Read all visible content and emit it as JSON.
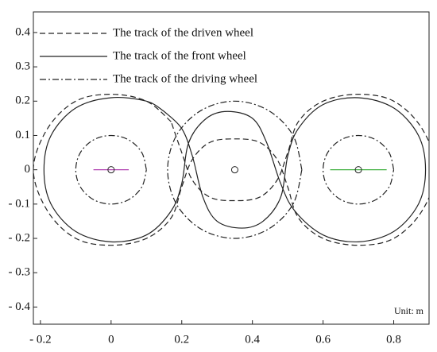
{
  "chart_data": {
    "type": "line",
    "annotation": "Unit: m",
    "xlim": [
      -0.22,
      0.9
    ],
    "ylim": [
      -0.45,
      0.46
    ],
    "xticks": [
      {
        "value": -0.2,
        "label": "- 0.2"
      },
      0,
      0.2,
      0.4,
      0.6,
      0.8
    ],
    "yticks": [
      {
        "value": -0.4,
        "label": "- 0.4"
      },
      {
        "value": -0.3,
        "label": "- 0.3"
      },
      {
        "value": -0.2,
        "label": "- 0.2"
      },
      {
        "value": -0.1,
        "label": "- 0.1"
      },
      0,
      0.1,
      0.2,
      0.3,
      0.4
    ],
    "legend": "upper left",
    "series": [
      {
        "name": "The track of the driven wheel",
        "color": "#222222",
        "style": "dashed",
        "x": [
          0.17,
          0.1,
          0,
          -0.1,
          -0.18,
          -0.22,
          -0.18,
          -0.1,
          0,
          0.1,
          0.17,
          0.2,
          0.23,
          0.28,
          0.35,
          0.42,
          0.47,
          0.5,
          0.53,
          0.6,
          0.7,
          0.8,
          0.88,
          0.92,
          0.88,
          0.8,
          0.7,
          0.6,
          0.53,
          0.5,
          0.47,
          0.42,
          0.35,
          0.28,
          0.23,
          0.2,
          0.17
        ],
        "y": [
          0.14,
          0.2,
          0.22,
          0.2,
          0.12,
          0,
          -0.12,
          -0.2,
          -0.22,
          -0.2,
          -0.14,
          -0.05,
          0.03,
          0.08,
          0.09,
          0.08,
          0.03,
          -0.05,
          -0.14,
          -0.2,
          -0.22,
          -0.2,
          -0.12,
          0,
          0.12,
          0.2,
          0.22,
          0.2,
          0.14,
          0.05,
          -0.03,
          -0.08,
          -0.09,
          -0.08,
          -0.03,
          0.05,
          0.14
        ]
      },
      {
        "name": "The track of the front wheel",
        "color": "#222222",
        "style": "solid",
        "x": [
          0.15,
          0.1,
          0,
          -0.1,
          -0.17,
          -0.19,
          -0.17,
          -0.1,
          0,
          0.1,
          0.17,
          0.2,
          0.22,
          0.27,
          0.33,
          0.4,
          0.44,
          0.48,
          0.52,
          0.6,
          0.7,
          0.8,
          0.87,
          0.89,
          0.87,
          0.8,
          0.7,
          0.6,
          0.53,
          0.5,
          0.48,
          0.43,
          0.37,
          0.3,
          0.26,
          0.23,
          0.2,
          0.15
        ],
        "y": [
          0.17,
          0.2,
          0.21,
          0.18,
          0.1,
          0,
          -0.1,
          -0.18,
          -0.21,
          -0.19,
          -0.12,
          -0.04,
          0.08,
          0.15,
          0.17,
          0.15,
          0.08,
          -0.04,
          -0.12,
          -0.19,
          -0.21,
          -0.18,
          -0.1,
          0,
          0.1,
          0.18,
          0.21,
          0.19,
          0.12,
          0.04,
          -0.08,
          -0.15,
          -0.17,
          -0.15,
          -0.08,
          0.04,
          0.12,
          0.17
        ]
      },
      {
        "name": "The track of the driving wheel",
        "color": "#222222",
        "style": "dashdot",
        "x": [
          0.1,
          0.087,
          0.05,
          0,
          -0.05,
          -0.087,
          -0.1,
          -0.087,
          -0.05,
          0,
          0.05,
          0.087,
          0.1,
          null,
          0.54,
          0.515,
          0.445,
          0.35,
          0.255,
          0.185,
          0.16,
          0.185,
          0.255,
          0.35,
          0.445,
          0.515,
          0.54,
          null,
          0.8,
          0.787,
          0.75,
          0.7,
          0.65,
          0.613,
          0.6,
          0.613,
          0.65,
          0.7,
          0.75,
          0.787,
          0.8
        ],
        "y": [
          0,
          0.05,
          0.087,
          0.1,
          0.087,
          0.05,
          0,
          -0.05,
          -0.087,
          -0.1,
          -0.087,
          -0.05,
          0,
          null,
          0,
          0.1,
          0.173,
          0.2,
          0.173,
          0.1,
          0,
          -0.1,
          -0.173,
          -0.2,
          -0.173,
          -0.1,
          0,
          null,
          0,
          0.05,
          0.087,
          0.1,
          0.087,
          0.05,
          0,
          -0.05,
          -0.087,
          -0.1,
          -0.087,
          -0.05,
          0
        ]
      }
    ],
    "centers": {
      "x": [
        0,
        0.35,
        0.7
      ],
      "y": [
        0,
        0,
        0
      ]
    },
    "segments": [
      {
        "color": "#b040b0",
        "x": [
          -0.05,
          0.05
        ],
        "y": [
          0,
          0
        ]
      },
      {
        "color": "#40b040",
        "x": [
          0.62,
          0.78
        ],
        "y": [
          0,
          0
        ]
      }
    ]
  }
}
